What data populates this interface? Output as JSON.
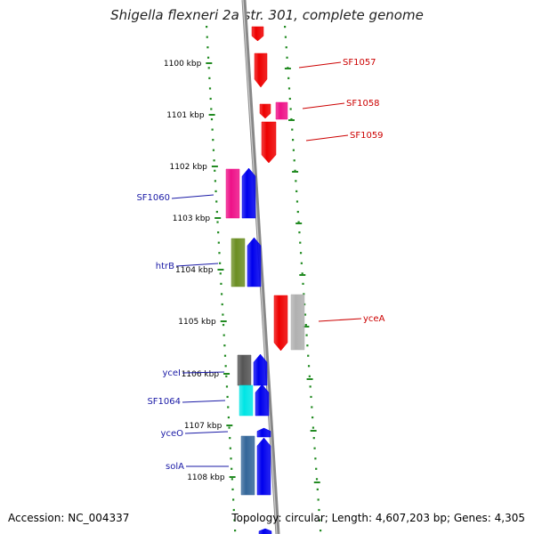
{
  "title": "Shigella flexneri 2a str. 301, complete genome",
  "footer": {
    "accession": "Accession: NC_004337",
    "summary": "Topology: circular; Length: 4,607,203 bp; Genes: 4,305"
  },
  "axis": {
    "unit": "kbp",
    "ticks": [
      "1100 kbp",
      "1101 kbp",
      "1102 kbp",
      "1103 kbp",
      "1104 kbp",
      "1105 kbp",
      "1106 kbp",
      "1107 kbp",
      "1108 kbp"
    ]
  },
  "labels": [
    {
      "name": "SF1057",
      "color": "#cc0000"
    },
    {
      "name": "SF1058",
      "color": "#cc0000"
    },
    {
      "name": "SF1059",
      "color": "#cc0000"
    },
    {
      "name": "SF1060",
      "color": "#1a1aa6"
    },
    {
      "name": "htrB",
      "color": "#1a1aa6"
    },
    {
      "name": "yceA",
      "color": "#cc0000"
    },
    {
      "name": "yceI",
      "color": "#1a1aa6"
    },
    {
      "name": "SF1064",
      "color": "#1a1aa6"
    },
    {
      "name": "yceO",
      "color": "#1a1aa6"
    },
    {
      "name": "solA",
      "color": "#1a1aa6"
    }
  ],
  "colors": {
    "red": "#ee0000",
    "blue": "#0000ee",
    "pink": "#ee1188",
    "olive": "#6b8e23",
    "dark_gray": "#555555",
    "light_gray": "#b0b0b0",
    "cyan": "#00e5e5",
    "steel_blue": "#336699",
    "tick_green": "#228b22",
    "backbone": "#888888"
  }
}
